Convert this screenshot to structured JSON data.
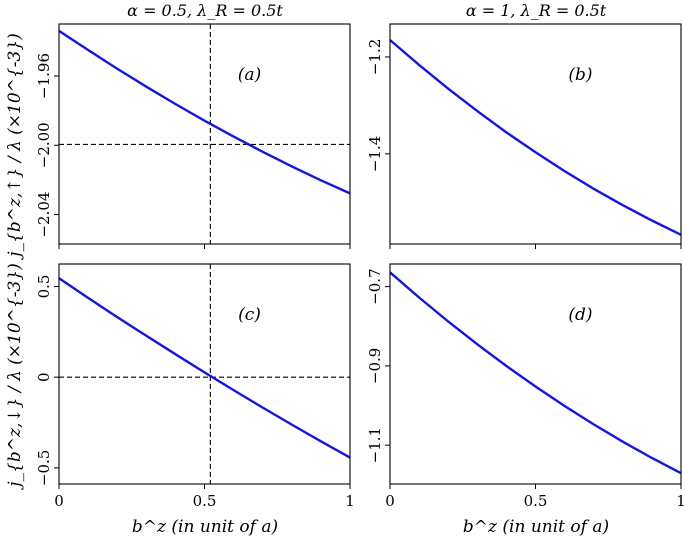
{
  "figure": {
    "titles": {
      "left": "α = 0.5, λ_R = 0.5t",
      "right": "α = 1, λ_R = 0.5t"
    },
    "ylabel_top": "j_{b^z,↑} / λ (×10^{-3})",
    "ylabel_bottom": "j_{b^z,↓} / λ (×10^{-3})",
    "xlabel": "b^z (in unit of a)",
    "reference_x": 0.52
  },
  "chart_data": [
    {
      "panel": "(a)",
      "type": "line",
      "x": [
        0,
        0.1,
        0.2,
        0.3,
        0.4,
        0.5,
        0.6,
        0.7,
        0.8,
        0.9,
        1.0
      ],
      "y": [
        -1.934,
        -1.945,
        -1.9558,
        -1.9662,
        -1.9762,
        -1.9858,
        -1.995,
        -2.0038,
        -2.0122,
        -2.0202,
        -2.0278
      ],
      "xlim": [
        0,
        1
      ],
      "ylim": [
        -2.057,
        -1.93
      ],
      "xticks": [
        0,
        0.5,
        1
      ],
      "yticks": [
        -2.04,
        -2.0,
        -1.96
      ],
      "ytick_labels": [
        "−2.04",
        "−2.00",
        "−1.96"
      ],
      "hline": -1.9995,
      "vline": 0.52,
      "ref_lines": true,
      "label": "(a)"
    },
    {
      "panel": "(b)",
      "type": "line",
      "x": [
        0,
        0.1,
        0.2,
        0.3,
        0.4,
        0.5,
        0.6,
        0.7,
        0.8,
        0.9,
        1.0
      ],
      "y": [
        -1.165,
        -1.2165,
        -1.2655,
        -1.3118,
        -1.3556,
        -1.3968,
        -1.4356,
        -1.472,
        -1.506,
        -1.5376,
        -1.567
      ],
      "xlim": [
        0,
        1
      ],
      "ylim": [
        -1.586,
        -1.132
      ],
      "xticks": [
        0,
        0.5,
        1
      ],
      "yticks": [
        -1.4,
        -1.2
      ],
      "ytick_labels": [
        "−1.4",
        "−1.2"
      ],
      "ref_lines": false,
      "label": "(b)"
    },
    {
      "panel": "(c)",
      "type": "line",
      "x": [
        0,
        0.1,
        0.2,
        0.3,
        0.4,
        0.5,
        0.6,
        0.7,
        0.8,
        0.9,
        1.0
      ],
      "y": [
        0.545,
        0.437,
        0.3315,
        0.228,
        0.1265,
        0.0265,
        -0.0715,
        -0.1675,
        -0.2615,
        -0.3535,
        -0.4435
      ],
      "xlim": [
        0,
        1
      ],
      "ylim": [
        -0.589,
        0.624
      ],
      "xticks": [
        0,
        0.5,
        1
      ],
      "yticks": [
        -0.5,
        0,
        0.5
      ],
      "ytick_labels": [
        "−0.5",
        "0",
        "0.5"
      ],
      "hline": 0,
      "vline": 0.52,
      "ref_lines": true,
      "label": "(c)"
    },
    {
      "panel": "(d)",
      "type": "line",
      "x": [
        0,
        0.1,
        0.2,
        0.3,
        0.4,
        0.5,
        0.6,
        0.7,
        0.8,
        0.9,
        1.0
      ],
      "y": [
        -0.664,
        -0.7275,
        -0.788,
        -0.8456,
        -0.9003,
        -0.9521,
        -1.0012,
        -1.0476,
        -1.0914,
        -1.1325,
        -1.1708
      ],
      "xlim": [
        0,
        1
      ],
      "ylim": [
        -1.198,
        -0.643
      ],
      "xticks": [
        0,
        0.5,
        1
      ],
      "yticks": [
        -1.1,
        -0.9,
        -0.7
      ],
      "ytick_labels": [
        "−1.1",
        "−0.9",
        "−0.7"
      ],
      "ref_lines": false,
      "label": "(d)"
    }
  ]
}
